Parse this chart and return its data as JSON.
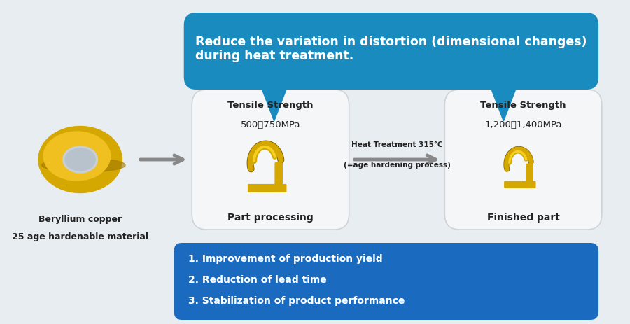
{
  "bg_color": "#e8edf2",
  "title_box_color": "#1a8bbf",
  "title_text": "Reduce the variation in distortion (dimensional changes)\nduring heat treatment.",
  "title_text_color": "#ffffff",
  "card_color": "#f0f2f5",
  "card_border_color": "#cccccc",
  "arrow_color": "#888888",
  "box1_title1": "Tensile Strength",
  "box1_title2": "500～750MPa",
  "box1_label": "Part processing",
  "box2_label1": "Heat Treatment 315°C",
  "box2_label2": "(=age hardening process)",
  "box3_title1": "Tensile Strength",
  "box3_title2": "1,200～1,400MPa",
  "box3_label": "Finished part",
  "material_label1": "Beryllium copper",
  "material_label2": "25 age hardenable material",
  "bottom_box_color": "#1a6abf",
  "bottom_text_color": "#ffffff",
  "bottom_items": [
    "1. Improvement of production yield",
    "2. Reduction of lead time",
    "3. Stabilization of product performance"
  ],
  "callout_color": "#1a8bbf"
}
